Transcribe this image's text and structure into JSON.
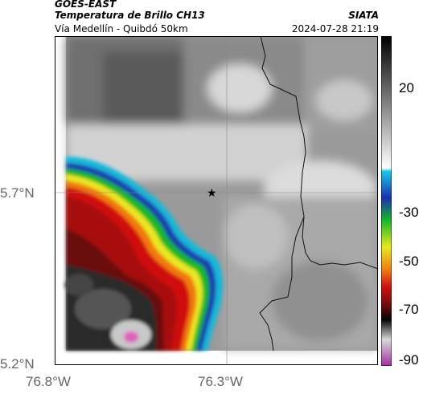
{
  "header": {
    "satellite": "GOES-EAST",
    "product": "Temperatura de Brillo CH13",
    "org": "SIATA",
    "location": "Vía Medellín - Quibdó 50km",
    "datetime": "2024-07-28 21:19"
  },
  "axes": {
    "y_ticks": [
      "5.7°N",
      "5.2°N"
    ],
    "x_ticks": [
      "76.8°W",
      "76.3°W"
    ]
  },
  "colorbar": {
    "ticks": [
      "20",
      "-30",
      "-50",
      "-70",
      "-90"
    ]
  },
  "marker": {
    "icon": "star-icon"
  }
}
